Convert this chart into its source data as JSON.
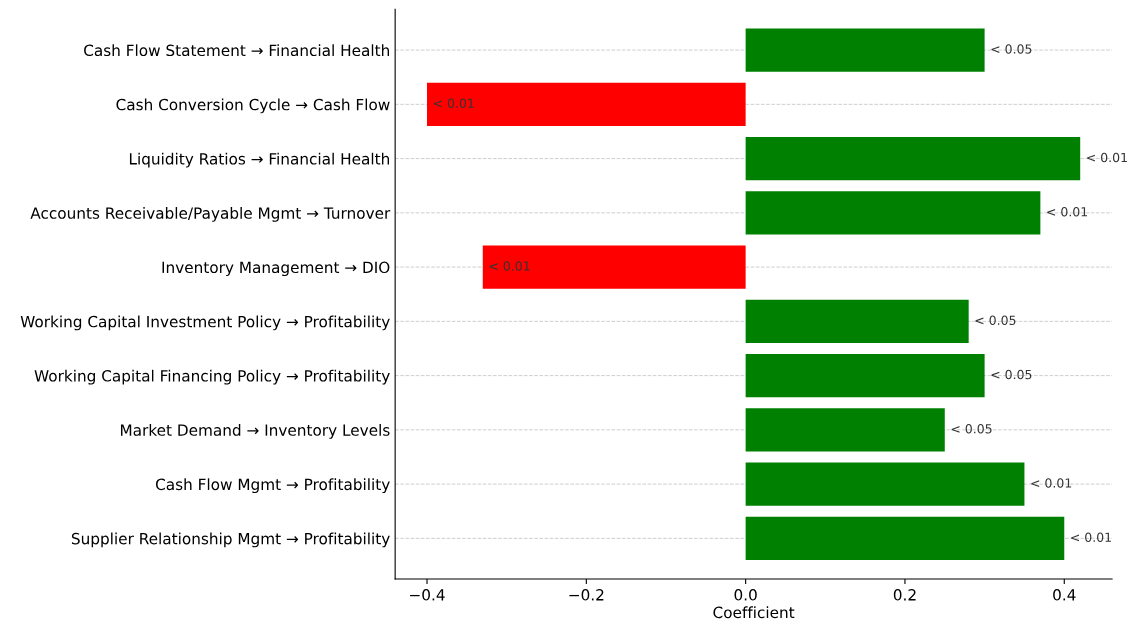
{
  "chart_data": {
    "type": "bar",
    "orientation": "horizontal",
    "xlabel": "Coefficient",
    "categories": [
      "Cash Flow Statement → Financial Health",
      "Cash Conversion Cycle → Cash Flow",
      "Liquidity Ratios → Financial Health",
      "Accounts Receivable/Payable Mgmt → Turnover",
      "Inventory Management → DIO",
      "Working Capital Investment Policy → Profitability",
      "Working Capital Financing Policy → Profitability",
      "Market Demand → Inventory Levels",
      "Cash Flow Mgmt → Profitability",
      "Supplier Relationship Mgmt → Profitability"
    ],
    "values": [
      0.3,
      -0.4,
      0.42,
      0.37,
      -0.33,
      0.28,
      0.3,
      0.25,
      0.35,
      0.4
    ],
    "colors": [
      "#008000",
      "#ff0000",
      "#008000",
      "#008000",
      "#ff0000",
      "#008000",
      "#008000",
      "#008000",
      "#008000",
      "#008000"
    ],
    "value_labels": [
      "< 0.05",
      "< 0.01",
      "< 0.01",
      "< 0.01",
      "< 0.01",
      "< 0.05",
      "< 0.05",
      "< 0.05",
      "< 0.01",
      "< 0.01"
    ],
    "xlim": [
      -0.44,
      0.46
    ],
    "xticks": [
      {
        "value": -0.4,
        "label": "−0.4"
      },
      {
        "value": -0.2,
        "label": "−0.2"
      },
      {
        "value": 0,
        "label": "0.0"
      },
      {
        "value": 0.2,
        "label": "0.2"
      },
      {
        "value": 0.4,
        "label": "0.4"
      }
    ],
    "grid": "y"
  }
}
